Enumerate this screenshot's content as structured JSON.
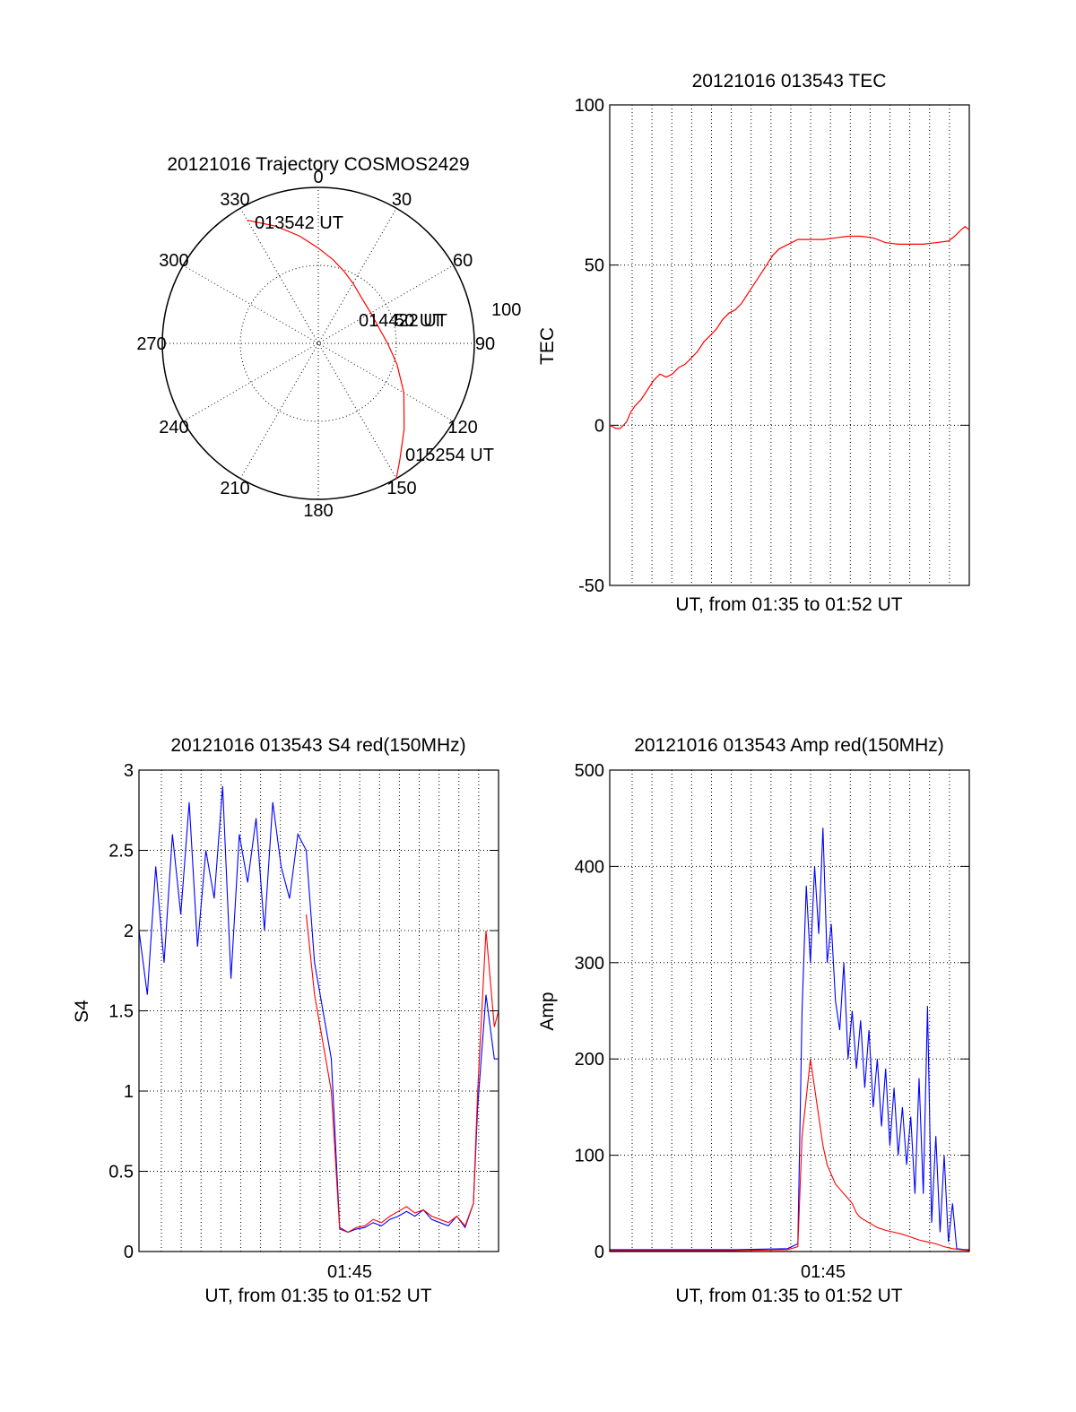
{
  "colors": {
    "red": "#ff0000",
    "blue": "#0000ff",
    "axis": "#000000"
  },
  "chart_data": [
    {
      "type": "polar",
      "title": "20121016 Trajectory COSMOS2429",
      "angle_labels": [
        "0",
        "30",
        "60",
        "90",
        "120",
        "150",
        "180",
        "210",
        "240",
        "270",
        "300",
        "330"
      ],
      "radial_label": "100",
      "start_label": "013542 UT",
      "mid_label": "014422 UT",
      "mid_label_overlap": "50 UT",
      "end_label": "015254 UT",
      "series": [
        {
          "color": "#ff0000",
          "azimuth_deg": [
            330,
            340,
            350,
            0,
            10,
            20,
            30,
            45,
            60,
            75,
            90,
            105,
            120,
            135,
            145,
            150
          ],
          "zenith": [
            82,
            72,
            63,
            55,
            49,
            44,
            40,
            36,
            35,
            36,
            40,
            47,
            57,
            70,
            82,
            90
          ]
        }
      ]
    },
    {
      "type": "line",
      "title": "20121016 013543 TEC",
      "xlabel": "UT, from 01:35 to 01:52 UT",
      "ylabel": "TEC",
      "xlim": [
        0,
        17.2
      ],
      "ylim": [
        -50,
        100
      ],
      "yticks": [
        "-50",
        "0",
        "50",
        "100"
      ],
      "series": [
        {
          "color": "#ff0000",
          "x": [
            0,
            0.3,
            0.5,
            0.8,
            1.0,
            1.2,
            1.5,
            1.8,
            2.1,
            2.4,
            2.7,
            3.0,
            3.3,
            3.6,
            3.9,
            4.2,
            4.5,
            4.8,
            5.1,
            5.4,
            5.7,
            6.0,
            6.3,
            6.6,
            6.9,
            7.2,
            7.5,
            7.8,
            8.1,
            8.4,
            8.7,
            9.0,
            9.6,
            10.2,
            10.8,
            11.4,
            12.0,
            12.6,
            13.2,
            13.8,
            14.4,
            15.0,
            15.6,
            16.2,
            16.5,
            16.8,
            17.0,
            17.2
          ],
          "y": [
            0,
            -1,
            -1,
            1,
            4,
            6,
            8,
            11,
            14,
            16,
            15,
            16,
            18,
            19,
            21,
            23,
            26,
            28,
            30,
            33,
            35,
            36,
            38,
            41,
            44,
            47,
            50,
            53,
            55,
            56,
            57,
            58,
            58,
            58,
            58.5,
            59,
            59,
            58.5,
            57,
            56.5,
            56.5,
            56.5,
            57,
            57.5,
            59,
            61,
            62,
            61
          ]
        }
      ]
    },
    {
      "type": "line",
      "title": "20121016 013543 S4 red(150MHz)",
      "xlabel": "UT, from 01:35 to 01:52 UT",
      "ylabel": "S4",
      "xlim": [
        0,
        17.2
      ],
      "ylim": [
        0,
        3
      ],
      "yticks": [
        "0",
        "0.5",
        "1",
        "1.5",
        "2",
        "2.5",
        "3"
      ],
      "xtick_label": "01:45",
      "series": [
        {
          "color": "#0000ff",
          "x": [
            0,
            0.4,
            0.8,
            1.2,
            1.6,
            2.0,
            2.4,
            2.8,
            3.2,
            3.6,
            4.0,
            4.4,
            4.8,
            5.2,
            5.6,
            6.0,
            6.4,
            6.8,
            7.2,
            7.6,
            8.0,
            8.4,
            8.8,
            9.2,
            9.6,
            10.0,
            10.4,
            10.8,
            11.2,
            11.6,
            12.0,
            12.4,
            12.8,
            13.2,
            13.6,
            14.0,
            14.4,
            14.8,
            15.2,
            15.6,
            16.0,
            16.2,
            16.6,
            17.0,
            17.2
          ],
          "y": [
            2.0,
            1.6,
            2.4,
            1.8,
            2.6,
            2.1,
            2.8,
            1.9,
            2.5,
            2.2,
            2.9,
            1.7,
            2.6,
            2.3,
            2.7,
            2.0,
            2.8,
            2.4,
            2.2,
            2.6,
            2.5,
            1.8,
            1.5,
            1.2,
            0.15,
            0.12,
            0.14,
            0.15,
            0.18,
            0.16,
            0.2,
            0.22,
            0.25,
            0.22,
            0.26,
            0.2,
            0.18,
            0.16,
            0.22,
            0.15,
            0.3,
            0.9,
            1.6,
            1.2,
            1.2
          ]
        },
        {
          "color": "#ff0000",
          "x": [
            8.0,
            8.4,
            8.8,
            9.2,
            9.6,
            10.0,
            10.4,
            10.8,
            11.2,
            11.6,
            12.0,
            12.4,
            12.8,
            13.2,
            13.6,
            14.0,
            14.4,
            14.8,
            15.2,
            15.6,
            16.0,
            16.2,
            16.6,
            17.0,
            17.2
          ],
          "y": [
            2.1,
            1.6,
            1.3,
            1.0,
            0.14,
            0.12,
            0.15,
            0.16,
            0.2,
            0.18,
            0.22,
            0.25,
            0.28,
            0.24,
            0.26,
            0.22,
            0.2,
            0.18,
            0.22,
            0.16,
            0.3,
            1.0,
            2.0,
            1.4,
            1.5
          ]
        }
      ]
    },
    {
      "type": "line",
      "title": "20121016 013543 Amp red(150MHz)",
      "xlabel": "UT, from 01:35 to 01:52 UT",
      "ylabel": "Amp",
      "xlim": [
        0,
        17.2
      ],
      "ylim": [
        0,
        500
      ],
      "yticks": [
        "0",
        "100",
        "200",
        "300",
        "400",
        "500"
      ],
      "xtick_label": "01:45",
      "series": [
        {
          "color": "#0000ff",
          "x": [
            0,
            2,
            4,
            6,
            8.5,
            9.0,
            9.2,
            9.4,
            9.6,
            9.8,
            10.0,
            10.2,
            10.4,
            10.6,
            10.8,
            11.0,
            11.2,
            11.4,
            11.6,
            11.8,
            12.0,
            12.2,
            12.4,
            12.6,
            12.8,
            13.0,
            13.2,
            13.4,
            13.6,
            13.8,
            14.0,
            14.2,
            14.4,
            14.6,
            14.8,
            15.0,
            15.2,
            15.4,
            15.6,
            15.8,
            16.0,
            16.2,
            16.4,
            16.6,
            17.0,
            17.2
          ],
          "y": [
            2,
            2,
            2,
            2,
            3,
            8,
            250,
            380,
            300,
            400,
            330,
            440,
            300,
            340,
            260,
            230,
            300,
            200,
            250,
            190,
            240,
            170,
            230,
            150,
            200,
            130,
            190,
            110,
            170,
            100,
            150,
            90,
            140,
            60,
            180,
            60,
            255,
            30,
            120,
            20,
            100,
            10,
            50,
            3,
            2,
            2
          ]
        },
        {
          "color": "#ff0000",
          "x": [
            0,
            2,
            4,
            6,
            8.5,
            9.0,
            9.2,
            9.4,
            9.6,
            9.8,
            10.0,
            10.2,
            10.4,
            10.6,
            10.8,
            11.0,
            11.2,
            11.4,
            11.6,
            11.8,
            12.0,
            12.4,
            12.8,
            13.2,
            13.6,
            14.0,
            14.4,
            14.8,
            15.2,
            15.6,
            16.0,
            16.4,
            16.8,
            17.2
          ],
          "y": [
            1,
            1,
            1,
            1,
            2,
            5,
            120,
            160,
            200,
            170,
            140,
            110,
            90,
            80,
            70,
            65,
            60,
            55,
            50,
            40,
            35,
            30,
            25,
            22,
            20,
            18,
            15,
            12,
            10,
            8,
            5,
            3,
            2,
            1
          ]
        }
      ]
    }
  ]
}
